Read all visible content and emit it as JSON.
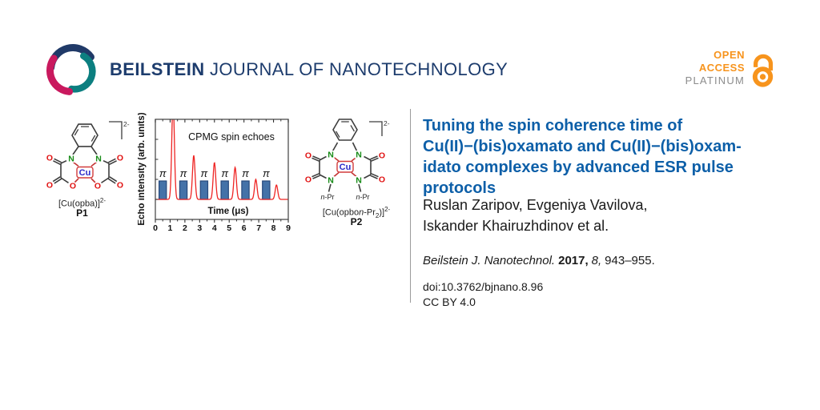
{
  "header": {
    "journal_bold": "BEILSTEIN",
    "journal_rest": "JOURNAL OF NANOTECHNOLOGY",
    "open_access": {
      "line1": "OPEN",
      "line2": "ACCESS",
      "line3": "PLATINUM"
    }
  },
  "graphic": {
    "atoms": {
      "nitrogen": "N",
      "oxygen": "O",
      "copper": "Cu"
    },
    "p1": {
      "bracket_charge": "2-",
      "caption": "[Cu(opba)]",
      "caption_charge": "2-",
      "label": "P1"
    },
    "p2": {
      "bracket_charge": "2-",
      "caption_pre": "[Cu(opbo",
      "caption_n": "n",
      "caption_mid": "-Pr",
      "caption_sub": "2",
      "caption_end": ")]",
      "caption_charge": "2-",
      "label": "P2",
      "npr_n": "n",
      "npr_rest": "-Pr"
    }
  },
  "chart_data": {
    "type": "line",
    "title": "CPMG spin echoes",
    "xlabel": "Time (μs)",
    "ylabel": "Echo intensity (arb. units)",
    "xlim": [
      0,
      9
    ],
    "x_ticks": [
      0,
      1,
      2,
      3,
      4,
      5,
      6,
      7,
      8,
      9
    ],
    "x_minor_step": 0.5,
    "grid": false,
    "series": [
      {
        "name": "echo intensity",
        "type": "peaks",
        "color": "#ee2423",
        "peaks_x": [
          1.2,
          2.6,
          4.0,
          5.4,
          6.8,
          8.2
        ],
        "peaks_rel_height": [
          1.25,
          0.55,
          0.46,
          0.4,
          0.25,
          0.18
        ],
        "note": "first echo clipped at top of frame"
      },
      {
        "name": "pi pulses",
        "type": "bars",
        "color": "#4472a8",
        "border": "#27497c",
        "label": "π",
        "centers_x": [
          0.5,
          1.9,
          3.3,
          4.7,
          6.1,
          7.5
        ],
        "width_x": 0.5,
        "rel_height": 0.23
      }
    ]
  },
  "article": {
    "title_lines": [
      "Tuning the spin coherence time of",
      "Cu(II)−(bis)oxamato and Cu(II)−(bis)oxam-",
      "idato complexes by advanced ESR pulse",
      "protocols"
    ],
    "authors_lines": [
      "Ruslan Zaripov, Evgeniya Vavilova,",
      "Iskander Khairuzhdinov et al."
    ],
    "citation": {
      "journal": "Beilstein J. Nanotechnol.",
      "year": "2017,",
      "volume": "8,",
      "pages": "943–955."
    },
    "doi": "doi:10.3762/bjnano.8.96",
    "license": "CC BY 4.0"
  },
  "colors": {
    "title_blue": "#0d5fa8",
    "logo_navy": "#203a68",
    "logo_teal": "#0c7f80",
    "logo_crimson": "#c9195e",
    "open_access_orange": "#f7941d",
    "platinum_gray": "#8c8c8c",
    "echo_red": "#ee2423",
    "pulse_blue": "#4472a8",
    "atom_nitrogen_green": "#158a15",
    "atom_oxygen_red": "#e01111",
    "atom_copper_blue": "#2a2ac8",
    "coordination_bond_red": "#c43434"
  }
}
